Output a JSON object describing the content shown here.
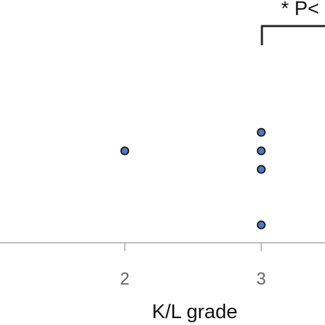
{
  "chart_data": {
    "type": "scatter",
    "title": "",
    "xlabel": "K/L grade",
    "ylabel": "",
    "x_ticks": [
      "2",
      "3"
    ],
    "points": [
      {
        "x": 2,
        "y": 5
      },
      {
        "x": 3,
        "y": 6
      },
      {
        "x": 3,
        "y": 5
      },
      {
        "x": 3,
        "y": 4
      },
      {
        "x": 3,
        "y": 1
      }
    ],
    "annotation": "* P<",
    "grid": false,
    "marker_color": "#4f78c4"
  }
}
